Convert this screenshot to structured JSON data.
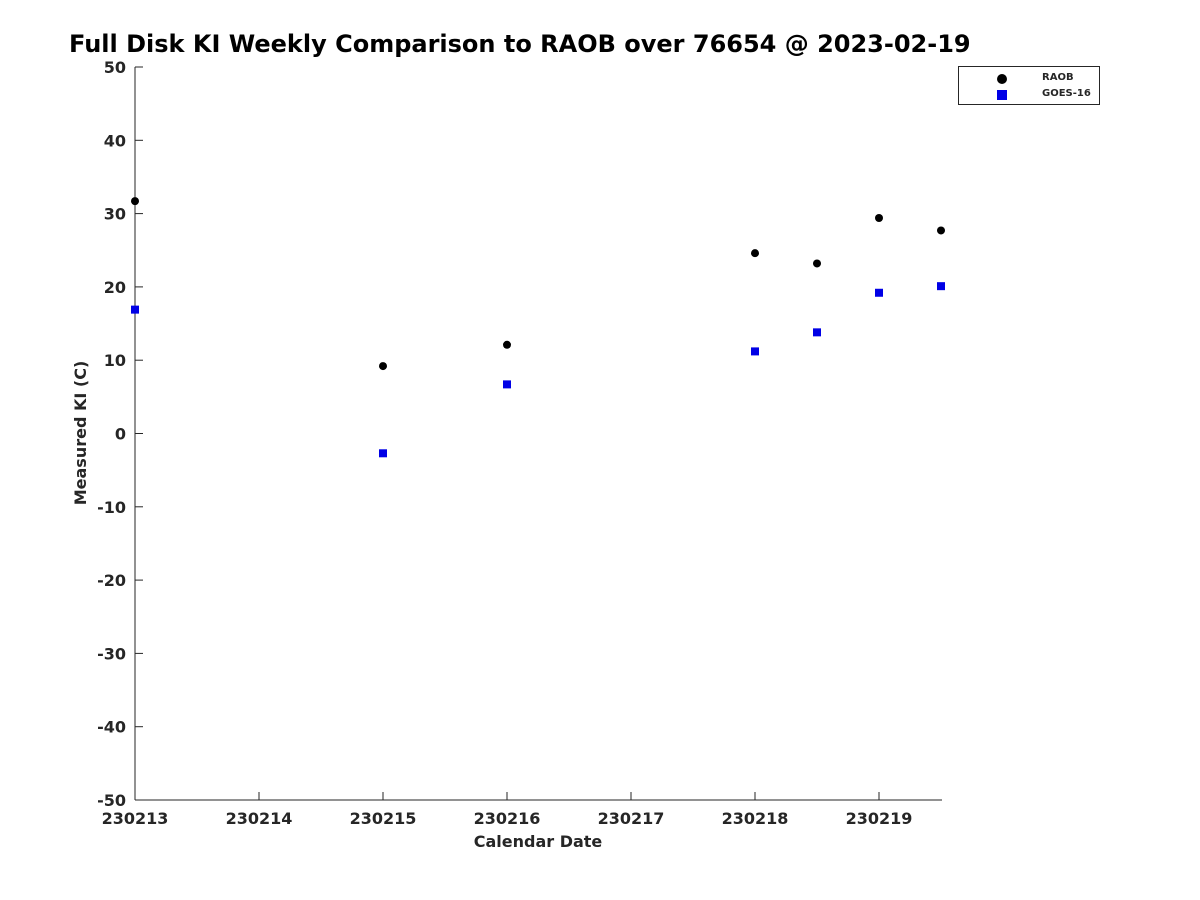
{
  "chart_data": {
    "type": "scatter",
    "title": "Full Disk KI Weekly Comparison to RAOB over 76654 @ 2023-02-19",
    "xlabel": "Calendar Date",
    "ylabel": "Measured KI (C)",
    "x_ticks": [
      "230213",
      "230214",
      "230215",
      "230216",
      "230217",
      "230218",
      "230219"
    ],
    "xlim": [
      "230213",
      "230219.5"
    ],
    "ylim": [
      -50,
      50
    ],
    "y_ticks": [
      -50,
      -40,
      -30,
      -20,
      -10,
      0,
      10,
      20,
      30,
      40,
      50
    ],
    "grid": false,
    "legend_position": "top-right",
    "series": [
      {
        "name": "RAOB",
        "marker": "circle",
        "color": "#000000",
        "points": [
          {
            "x": "230213 00Z",
            "y": 31.7
          },
          {
            "x": "230215 00Z",
            "y": 9.2
          },
          {
            "x": "230216 00Z",
            "y": 12.1
          },
          {
            "x": "230218 00Z",
            "y": 24.6
          },
          {
            "x": "230218 12Z",
            "y": 23.2
          },
          {
            "x": "230219 00Z",
            "y": 29.4
          },
          {
            "x": "230219 12Z",
            "y": 27.7
          }
        ]
      },
      {
        "name": "GOES-16",
        "marker": "square",
        "color": "#0000e6",
        "points": [
          {
            "x": "230213 00Z",
            "y": 16.9
          },
          {
            "x": "230215 00Z",
            "y": -2.7
          },
          {
            "x": "230216 00Z",
            "y": 6.7
          },
          {
            "x": "230218 00Z",
            "y": 11.2
          },
          {
            "x": "230218 12Z",
            "y": 13.8
          },
          {
            "x": "230219 00Z",
            "y": 19.2
          },
          {
            "x": "230219 12Z",
            "y": 20.1
          }
        ]
      }
    ]
  }
}
